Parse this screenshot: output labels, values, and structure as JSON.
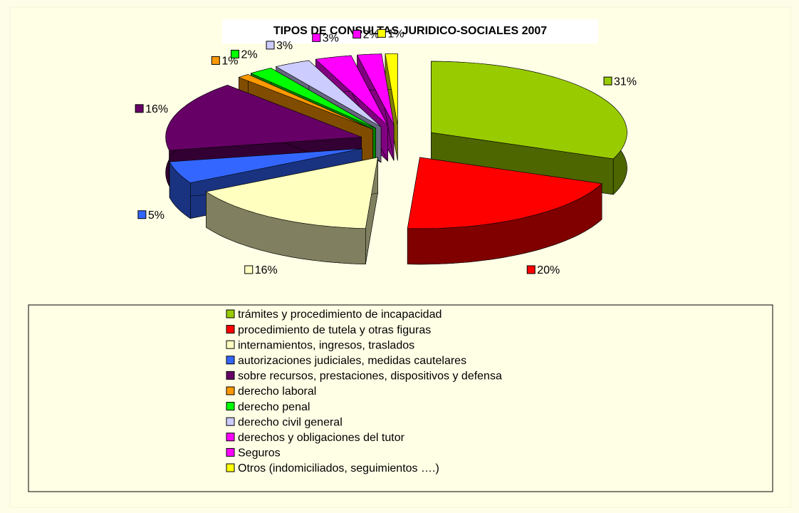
{
  "chart_data": {
    "type": "pie3d",
    "title": "TIPOS DE CONSULTAS JURIDICO-SOCIALES 2007",
    "categories": [
      "trámites y procedimiento de incapacidad",
      "procedimiento de tutela y otras figuras",
      "internamientos, ingresos, traslados",
      "autorizaciones judiciales, medidas cautelares",
      "sobre recursos, prestaciones, dispositivos y defensa",
      "derecho laboral",
      "derecho penal",
      "derecho civil general",
      "derechos y obligaciones del tutor",
      "Seguros",
      "Otros (indomiciliados, seguimientos ….)"
    ],
    "values": [
      31,
      20,
      16,
      5,
      16,
      1,
      2,
      3,
      3,
      2,
      1
    ],
    "value_labels": [
      "31%",
      "20%",
      "16%",
      "5%",
      "16%",
      "1%",
      "2%",
      "3%",
      "3%",
      "2%",
      "1%"
    ],
    "colors": [
      "#99cc00",
      "#ff0000",
      "#ffffc0",
      "#3366ff",
      "#660066",
      "#ff9900",
      "#00ff00",
      "#ccccff",
      "#ff00ff",
      "#ff00ff",
      "#ffff00"
    ],
    "legend": "bottom"
  }
}
